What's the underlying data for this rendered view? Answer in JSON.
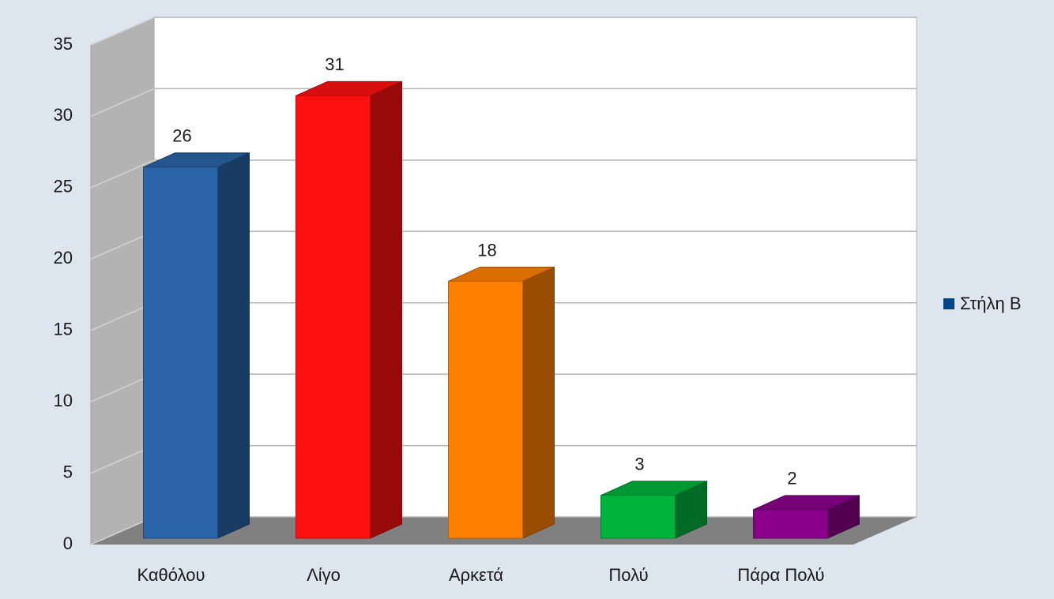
{
  "chart_data": {
    "type": "bar",
    "categories": [
      "Καθόλου",
      "Λίγο",
      "Αρκετά",
      "Πολύ",
      "Πάρα Πολύ"
    ],
    "series": [
      {
        "name": "Στήλη B",
        "color": "#004586",
        "values": [
          26,
          31,
          18,
          3,
          2
        ]
      }
    ],
    "bar_colors": [
      "#2a64a6",
      "#ff1010",
      "#ff8000",
      "#00b33c",
      "#8b008b"
    ],
    "ylim": [
      0,
      35
    ],
    "yticks": [
      0,
      5,
      10,
      15,
      20,
      25,
      30,
      35
    ],
    "grid": true,
    "legend": "right",
    "data_labels": true
  }
}
